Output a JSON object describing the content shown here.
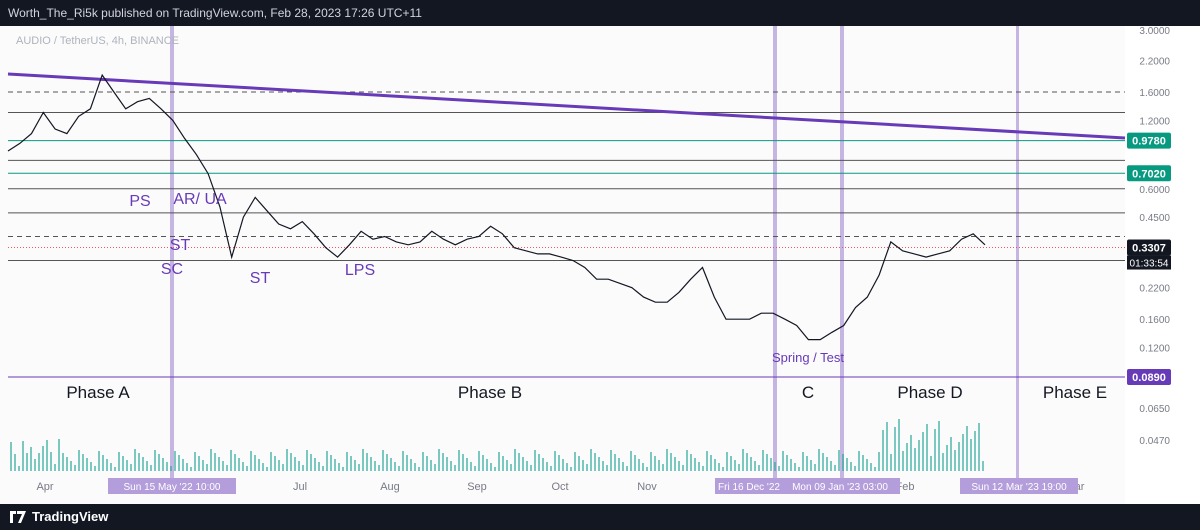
{
  "header": {
    "publisher_line": "Worth_The_Ri5k published on TradingView.com, Feb 28, 2023 17:26 UTC+11"
  },
  "footer": {
    "brand": "TradingView"
  },
  "chart_data": {
    "type": "line",
    "symbol": "AUDIO / TetherUS, 4h, BINANCE",
    "scale": "log",
    "price_axis_ticks": [
      "3.0000",
      "2.2000",
      "1.6000",
      "1.2000",
      "0.6000",
      "0.4500",
      "0.2200",
      "0.1600",
      "0.1200",
      "0.0650",
      "0.0470"
    ],
    "price_tags": [
      {
        "label": "0.9780",
        "color": "#089981"
      },
      {
        "label": "0.7020",
        "color": "#089981"
      },
      {
        "label": "0.3307",
        "color": "#131722"
      },
      {
        "label": "0.0890",
        "color": "#673ab7"
      }
    ],
    "countdown": "01:33:54",
    "x_ticks": [
      "Apr",
      "Jul",
      "Aug",
      "Sep",
      "Oct",
      "Nov",
      "Feb",
      "Mar"
    ],
    "x_range_labels": [
      "Sun 15 May '22  10:00",
      "Fri 16 Dec '22",
      "Mon 09 Jan '23  03:00",
      "Sun 12 Mar '23  19:00"
    ],
    "price_series": {
      "name": "",
      "values": [
        0.88,
        0.95,
        1.05,
        1.3,
        1.1,
        1.05,
        1.25,
        1.35,
        1.9,
        1.6,
        1.35,
        1.45,
        1.5,
        1.35,
        1.2,
        1.0,
        0.85,
        0.7,
        0.5,
        0.3,
        0.45,
        0.55,
        0.48,
        0.42,
        0.4,
        0.43,
        0.38,
        0.33,
        0.3,
        0.34,
        0.39,
        0.36,
        0.37,
        0.35,
        0.34,
        0.35,
        0.39,
        0.36,
        0.34,
        0.36,
        0.37,
        0.41,
        0.38,
        0.33,
        0.32,
        0.31,
        0.31,
        0.3,
        0.29,
        0.27,
        0.24,
        0.24,
        0.23,
        0.22,
        0.2,
        0.19,
        0.19,
        0.21,
        0.24,
        0.27,
        0.2,
        0.16,
        0.16,
        0.16,
        0.17,
        0.17,
        0.16,
        0.15,
        0.13,
        0.13,
        0.14,
        0.15,
        0.18,
        0.2,
        0.25,
        0.35,
        0.32,
        0.31,
        0.3,
        0.31,
        0.32,
        0.36,
        0.38,
        0.34
      ]
    },
    "horizontal_levels": [
      {
        "value": 1.6,
        "style": "dashed",
        "color": "#555"
      },
      {
        "value": 1.3,
        "style": "solid",
        "color": "#555"
      },
      {
        "value": 0.978,
        "style": "solid",
        "color": "#089981"
      },
      {
        "value": 0.8,
        "style": "solid",
        "color": "#555"
      },
      {
        "value": 0.702,
        "style": "solid",
        "color": "#089981"
      },
      {
        "value": 0.6,
        "style": "solid",
        "color": "#555"
      },
      {
        "value": 0.47,
        "style": "solid",
        "color": "#555"
      },
      {
        "value": 0.37,
        "style": "dashed",
        "color": "#555"
      },
      {
        "value": 0.3307,
        "style": "dotted",
        "color": "#f7525f"
      },
      {
        "value": 0.29,
        "style": "solid",
        "color": "#555"
      },
      {
        "value": 0.089,
        "style": "solid",
        "color": "#673ab7"
      }
    ],
    "annotations": [
      "PS",
      "AR/ UA",
      "ST",
      "SC",
      "ST",
      "LPS",
      "Spring / Test"
    ],
    "phases": [
      "Phase A",
      "Phase B",
      "C",
      "Phase D",
      "Phase E"
    ],
    "colors": {
      "accent": "#673ab7",
      "phase_band": "#b39ddb",
      "volume_up": "#26a69a",
      "volume_down": "#ef5350"
    }
  }
}
